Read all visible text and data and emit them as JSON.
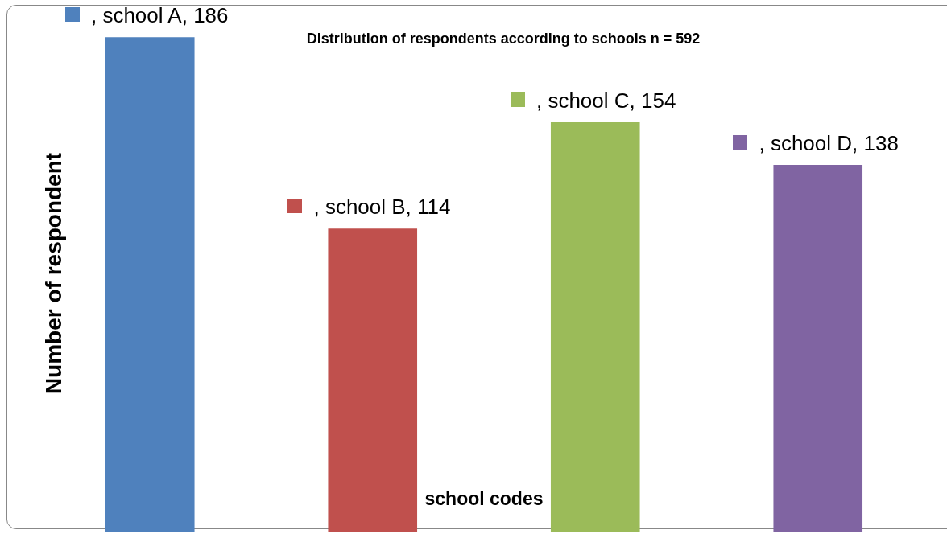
{
  "chart_data": {
    "type": "bar",
    "title": "Distribution of respondents according to schools n = 592",
    "xlabel": "school codes",
    "ylabel": "Number of respondent",
    "categories": [
      null,
      null,
      null,
      null
    ],
    "values": [
      186,
      114,
      154,
      138
    ],
    "colors": [
      "#4f81bd",
      "#c0504d",
      "#9bbb59",
      "#8064a2"
    ],
    "value_labels": [
      ", school A, 186",
      ", school B, 114",
      ", school C, 154",
      ", school D, 138"
    ],
    "tick_labels": false,
    "grid": false,
    "legend": false
  }
}
